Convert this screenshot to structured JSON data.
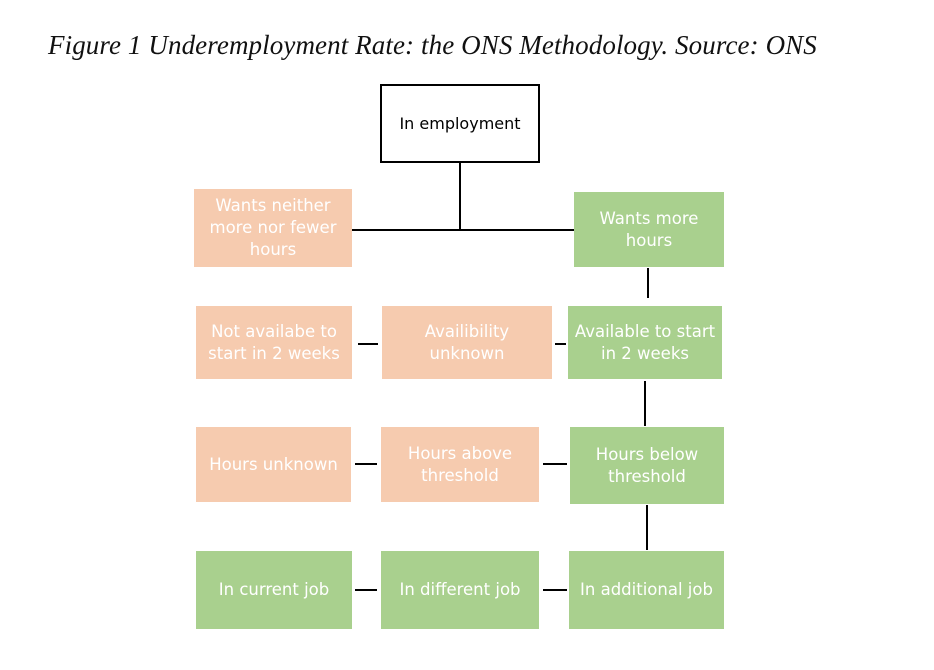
{
  "caption": "Figure 1 Underemployment Rate: the ONS Methodology. Source: ONS",
  "colors": {
    "green": "#a9d08e",
    "peach": "#f6cbaf",
    "root_border": "#000000",
    "connector": "#000000"
  },
  "nodes": {
    "root": "In employment",
    "wants_neither": "Wants neither more nor fewer hours",
    "wants_more": "Wants more hours",
    "not_available": "Not availabe to start in 2 weeks",
    "availability_unknown": "Availibility unknown",
    "available": "Available to start in 2 weeks",
    "hours_unknown": "Hours unknown",
    "hours_above": "Hours above threshold",
    "hours_below": "Hours below threshold",
    "in_current_job": "In current job",
    "in_different_job": "In different job",
    "in_additional_job": "In additional job"
  }
}
